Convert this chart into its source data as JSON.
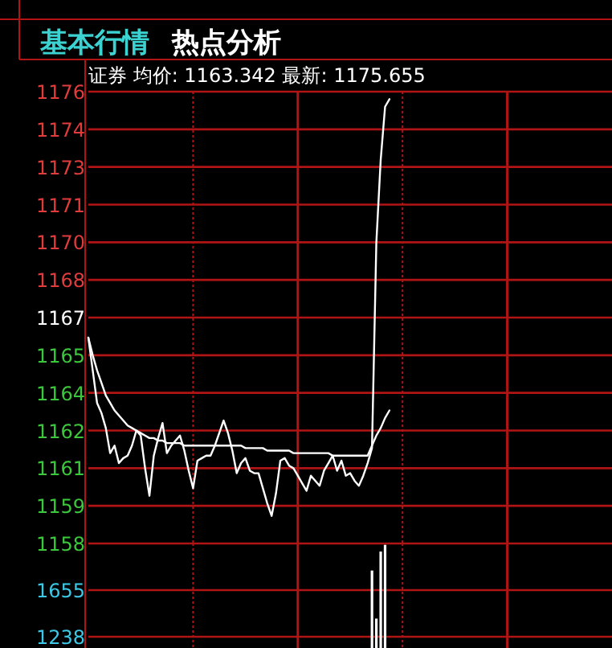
{
  "chart_data": [
    {
      "type": "line",
      "title": "基本行情",
      "subtitle": "热点分析",
      "annotations": [
        "证券 均价: 1163.342 最新: 1175.655"
      ],
      "grid": true,
      "categories": [
        null,
        null,
        null,
        null,
        null,
        null,
        null,
        null,
        null,
        null,
        null,
        null,
        null,
        null,
        null,
        null,
        null,
        null,
        null,
        null,
        null,
        null,
        null,
        null,
        null,
        null,
        null,
        null,
        null,
        null,
        null,
        null,
        null,
        null,
        null,
        null,
        null,
        null,
        null,
        null,
        null,
        null,
        null,
        null,
        null,
        null,
        null,
        null,
        null,
        null,
        null,
        null,
        null,
        null,
        null,
        null,
        null,
        null,
        null,
        null,
        null,
        null,
        null,
        null,
        null,
        null,
        null,
        null,
        null,
        null,
        null,
        null,
        null,
        null,
        null,
        null,
        null,
        null,
        null,
        null,
        null,
        null,
        null,
        null,
        null,
        null,
        null,
        null,
        null,
        null,
        null,
        null,
        null,
        null,
        null,
        null,
        null,
        null,
        null,
        null,
        null,
        null,
        null,
        null,
        null,
        null,
        null,
        null,
        null,
        null,
        null,
        null,
        null,
        null,
        null,
        null,
        null,
        null,
        null,
        null
      ],
      "ylim": [
        1158,
        1176
      ],
      "yticks": [
        {
          "value": 1158,
          "label": "1158"
        },
        {
          "value": 1159.5,
          "label": "1159"
        },
        {
          "value": 1161,
          "label": "1161"
        },
        {
          "value": 1162.5,
          "label": "1162"
        },
        {
          "value": 1164,
          "label": "1164"
        },
        {
          "value": 1165.5,
          "label": "1165"
        },
        {
          "value": 1167,
          "label": "1167"
        },
        {
          "value": 1168.5,
          "label": "1168"
        },
        {
          "value": 1170,
          "label": "1170"
        },
        {
          "value": 1171.5,
          "label": "1171"
        },
        {
          "value": 1173,
          "label": "1173"
        },
        {
          "value": 1174.5,
          "label": "1174"
        },
        {
          "value": 1176,
          "label": "1176"
        }
      ],
      "series": [
        {
          "color": "#ffffff",
          "values": [
            1166.2,
            1164.9,
            1163.6,
            1163.2,
            1162.6,
            1161.6,
            1161.9,
            1161.2,
            1161.4,
            1161.5,
            1161.9,
            1162.5,
            1162.3,
            1161.0,
            1159.9,
            1161.5,
            1162.2,
            1162.8,
            1161.6,
            1161.9,
            1162.1,
            1162.3,
            1161.7,
            1160.9,
            1160.2,
            1161.3,
            1161.4,
            1161.5,
            1161.5,
            1161.9,
            1162.4,
            1162.9,
            1162.4,
            1161.7,
            1160.8,
            1161.2,
            1161.4,
            1160.9,
            1160.8,
            1160.8,
            1160.2,
            1159.6,
            1159.1,
            1160.0,
            1161.3,
            1161.4,
            1161.1,
            1161.0,
            1160.7,
            1160.4,
            1160.1,
            1160.7,
            1160.5,
            1160.3,
            1160.9,
            1161.2,
            1161.5,
            1160.9,
            1161.3,
            1160.7,
            1160.8,
            1160.5,
            1160.3,
            1160.7,
            1161.2,
            1161.8,
            1170.0,
            1173.3,
            1175.4,
            1175.7,
            null,
            null,
            null,
            null,
            null,
            null,
            null,
            null,
            null,
            null,
            null,
            null,
            null,
            null,
            null,
            null,
            null,
            null,
            null,
            null,
            null,
            null,
            null,
            null,
            null,
            null,
            null,
            null,
            null,
            null,
            null,
            null,
            null,
            null,
            null,
            null,
            null,
            null,
            null,
            null,
            null,
            null,
            null,
            null,
            null,
            null,
            null,
            null,
            null,
            null
          ]
        },
        {
          "color": "#ffffff",
          "values": [
            1166.2,
            1165.5,
            1164.9,
            1164.4,
            1163.9,
            1163.6,
            1163.3,
            1163.1,
            1162.9,
            1162.7,
            1162.6,
            1162.5,
            1162.4,
            1162.3,
            1162.2,
            1162.2,
            1162.1,
            1162.1,
            1162.0,
            1162.0,
            1162.0,
            1162.0,
            1161.9,
            1161.9,
            1161.9,
            1161.9,
            1161.9,
            1161.9,
            1161.9,
            1161.9,
            1161.9,
            1161.9,
            1161.9,
            1161.9,
            1161.9,
            1161.9,
            1161.8,
            1161.8,
            1161.8,
            1161.8,
            1161.8,
            1161.7,
            1161.7,
            1161.7,
            1161.7,
            1161.7,
            1161.7,
            1161.6,
            1161.6,
            1161.6,
            1161.6,
            1161.6,
            1161.6,
            1161.6,
            1161.6,
            1161.6,
            1161.5,
            1161.5,
            1161.5,
            1161.5,
            1161.5,
            1161.5,
            1161.5,
            1161.5,
            1161.5,
            1161.9,
            1162.3,
            1162.6,
            1163.0,
            1163.3,
            null,
            null,
            null,
            null,
            null,
            null,
            null,
            null,
            null,
            null,
            null,
            null,
            null,
            null,
            null,
            null,
            null,
            null,
            null,
            null,
            null,
            null,
            null,
            null,
            null,
            null,
            null,
            null,
            null,
            null,
            null,
            null,
            null,
            null,
            null,
            null,
            null,
            null,
            null,
            null,
            null,
            null,
            null,
            null,
            null,
            null,
            null,
            null,
            null,
            null
          ]
        }
      ]
    },
    {
      "type": "bar",
      "grid": true,
      "categories": [
        null,
        null,
        null,
        null,
        null,
        null,
        null,
        null,
        null,
        null,
        null,
        null,
        null,
        null,
        null,
        null,
        null,
        null,
        null,
        null,
        null,
        null,
        null,
        null,
        null,
        null,
        null,
        null,
        null,
        null,
        null,
        null,
        null,
        null,
        null,
        null,
        null,
        null,
        null,
        null,
        null,
        null,
        null,
        null,
        null,
        null,
        null,
        null,
        null,
        null,
        null,
        null,
        null,
        null,
        null,
        null,
        null,
        null,
        null,
        null,
        null,
        null,
        null,
        null,
        null,
        null,
        null,
        null,
        null,
        null,
        null,
        null,
        null,
        null,
        null,
        null,
        null,
        null,
        null,
        null,
        null,
        null,
        null,
        null,
        null,
        null,
        null,
        null,
        null,
        null,
        null,
        null,
        null,
        null,
        null,
        null,
        null,
        null,
        null,
        null,
        null,
        null,
        null,
        null,
        null,
        null,
        null,
        null,
        null,
        null,
        null,
        null,
        null,
        null,
        null,
        null,
        null,
        null,
        null,
        null
      ],
      "ylim": [
        1137,
        2072
      ],
      "yticks": [
        1238,
        1655
      ],
      "color": "#ffffff",
      "values": [
        null,
        null,
        null,
        null,
        null,
        null,
        null,
        null,
        null,
        null,
        null,
        null,
        null,
        null,
        null,
        null,
        null,
        null,
        null,
        null,
        null,
        null,
        null,
        null,
        null,
        null,
        null,
        null,
        null,
        null,
        null,
        null,
        null,
        null,
        null,
        null,
        null,
        null,
        null,
        null,
        null,
        null,
        null,
        null,
        null,
        null,
        null,
        null,
        null,
        null,
        null,
        null,
        null,
        null,
        null,
        null,
        null,
        null,
        null,
        null,
        null,
        null,
        null,
        null,
        null,
        1830,
        1400,
        2000,
        2060,
        null,
        null,
        null,
        null,
        null,
        null,
        null,
        null,
        null,
        null,
        null,
        null,
        null,
        null,
        null,
        null,
        null,
        null,
        null,
        null,
        null,
        null,
        null,
        null,
        null,
        null,
        null,
        null,
        null,
        null,
        null,
        null,
        null,
        null,
        null,
        null,
        null,
        null,
        null,
        null,
        null,
        null,
        null,
        null,
        null,
        null,
        null,
        null,
        null,
        null,
        null
      ]
    }
  ]
}
